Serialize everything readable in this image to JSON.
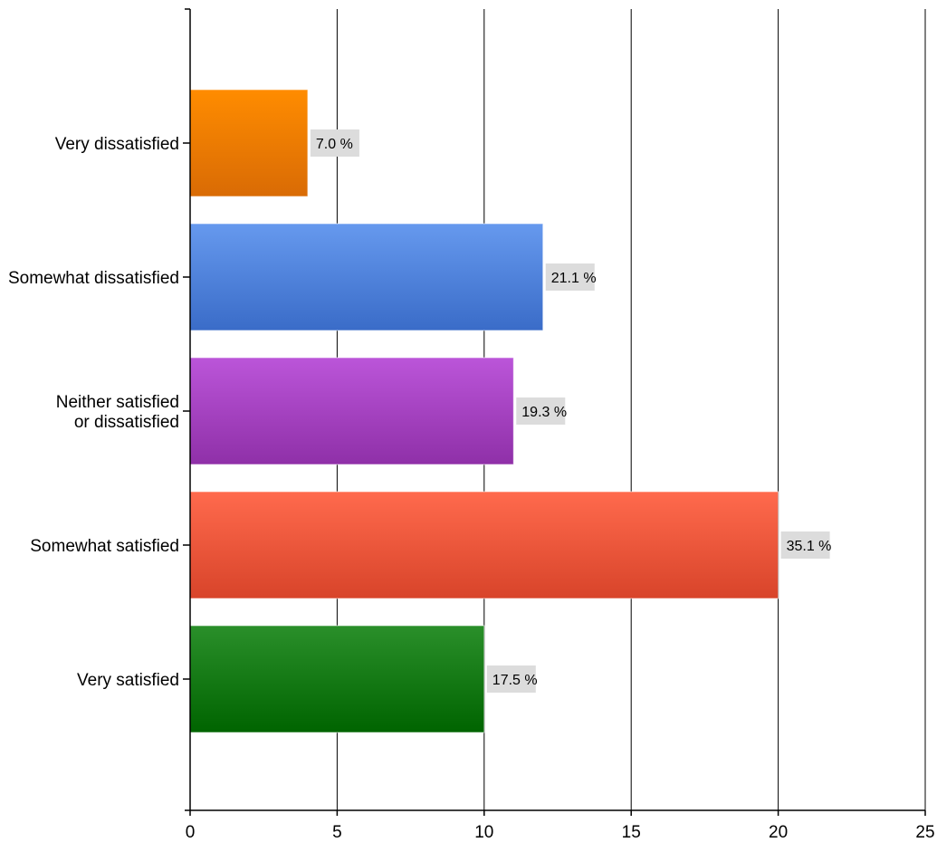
{
  "chart_data": {
    "type": "bar",
    "orientation": "horizontal",
    "title": "",
    "xlabel": "",
    "ylabel": "",
    "xlim": [
      0,
      25
    ],
    "x_ticks": [
      0,
      5,
      10,
      15,
      20,
      25
    ],
    "grid": "vertical",
    "legend": "none",
    "categories": [
      "Very dissatisfied",
      "Somewhat dissatisfied",
      "Neither satisfied or dissatisfied",
      "Somewhat satisfied",
      "Very satisfied"
    ],
    "category_label_lines": [
      [
        "Very dissatisfied"
      ],
      [
        "Somewhat dissatisfied"
      ],
      [
        "Neither satisfied",
        "or dissatisfied"
      ],
      [
        "Somewhat satisfied"
      ],
      [
        "Very satisfied"
      ]
    ],
    "values": [
      4,
      12,
      11,
      20,
      10
    ],
    "data_labels": [
      "7.0 %",
      "21.1 %",
      "19.3 %",
      "35.1 %",
      "17.5 %"
    ],
    "colors": [
      {
        "top": "#ff8c00",
        "bottom": "#d96b05"
      },
      {
        "top": "#6699ee",
        "bottom": "#3a6cc8"
      },
      {
        "top": "#bb55d9",
        "bottom": "#8f30a8"
      },
      {
        "top": "#ff6a4d",
        "bottom": "#d8442a"
      },
      {
        "top": "#2a8f2a",
        "bottom": "#006400"
      }
    ]
  }
}
